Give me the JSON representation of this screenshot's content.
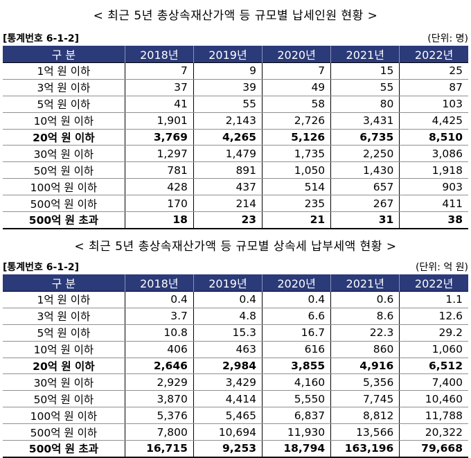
{
  "table1": {
    "title": "< 최근 5년 총상속재산가액 등 규모별 납세인원 현황 >",
    "code": "[통계번호 6-1-2]",
    "unit": "(단위: 명)",
    "header": [
      "구 분",
      "2018년",
      "2019년",
      "2020년",
      "2021년",
      "2022년"
    ],
    "rows": [
      {
        "label": "1억 원 이하",
        "values": [
          "7",
          "9",
          "7",
          "15",
          "25"
        ]
      },
      {
        "label": "3억 원 이하",
        "values": [
          "37",
          "39",
          "49",
          "55",
          "87"
        ]
      },
      {
        "label": "5억 원 이하",
        "values": [
          "41",
          "55",
          "58",
          "80",
          "103"
        ]
      },
      {
        "label": "10억 원 이하",
        "values": [
          "1,901",
          "2,143",
          "2,726",
          "3,431",
          "4,425"
        ]
      },
      {
        "label": "20억 원 이하",
        "values": [
          "3,769",
          "4,265",
          "5,126",
          "6,735",
          "8,510"
        ]
      },
      {
        "label": "30억 원 이하",
        "values": [
          "1,297",
          "1,479",
          "1,735",
          "2,250",
          "3,086"
        ]
      },
      {
        "label": "50억 원 이하",
        "values": [
          "781",
          "891",
          "1,050",
          "1,430",
          "1,918"
        ]
      },
      {
        "label": "100억 원 이하",
        "values": [
          "428",
          "437",
          "514",
          "657",
          "903"
        ]
      },
      {
        "label": "500억 원 이하",
        "values": [
          "170",
          "214",
          "235",
          "267",
          "411"
        ]
      },
      {
        "label": "500억 원 초과",
        "values": [
          "18",
          "23",
          "21",
          "31",
          "38"
        ]
      }
    ]
  },
  "table2": {
    "title": "< 최근 5년 총상속재산가액 등 규모별 상속세 납부세액 현황 >",
    "code": "[통계번호 6-1-2]",
    "unit": "(단위: 억 원)",
    "header": [
      "구 분",
      "2018년",
      "2019년",
      "2020년",
      "2021년",
      "2022년"
    ],
    "rows": [
      {
        "label": "1억 원 이하",
        "values": [
          "0.4",
          "0.4",
          "0.4",
          "0.6",
          "1.1"
        ]
      },
      {
        "label": "3억 원 이하",
        "values": [
          "3.7",
          "4.8",
          "6.6",
          "8.6",
          "12.6"
        ]
      },
      {
        "label": "5억 원 이하",
        "values": [
          "10.8",
          "15.3",
          "16.7",
          "22.3",
          "29.2"
        ]
      },
      {
        "label": "10억 원 이하",
        "values": [
          "406",
          "463",
          "616",
          "860",
          "1,060"
        ]
      },
      {
        "label": "20억 원 이하",
        "values": [
          "2,646",
          "2,984",
          "3,855",
          "4,916",
          "6,512"
        ]
      },
      {
        "label": "30억 원 이하",
        "values": [
          "2,929",
          "3,429",
          "4,160",
          "5,356",
          "7,400"
        ]
      },
      {
        "label": "50억 원 이하",
        "values": [
          "3,870",
          "4,414",
          "5,550",
          "7,745",
          "10,460"
        ]
      },
      {
        "label": "100억 원 이하",
        "values": [
          "5,376",
          "5,465",
          "6,837",
          "8,812",
          "11,788"
        ]
      },
      {
        "label": "500억 원 이하",
        "values": [
          "7,800",
          "10,694",
          "11,930",
          "13,566",
          "20,322"
        ]
      },
      {
        "label": "500억 원 초과",
        "values": [
          "16,715",
          "9,253",
          "18,794",
          "163,196",
          "79,668"
        ]
      }
    ]
  }
}
